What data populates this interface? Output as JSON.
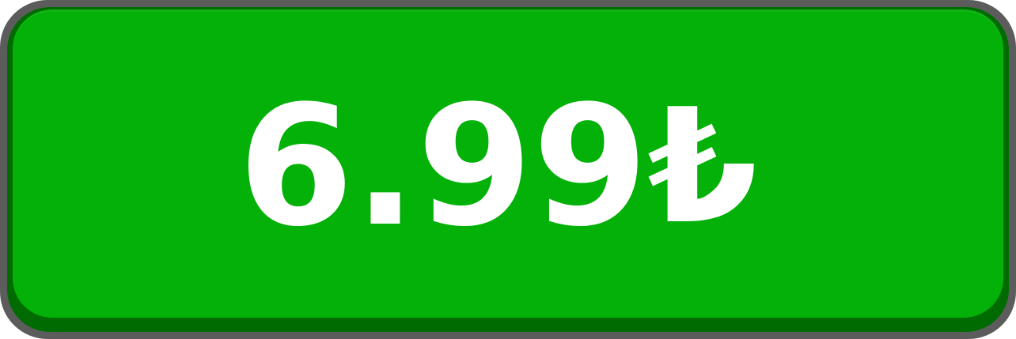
{
  "purchase_button": {
    "price_amount": "6.99",
    "currency_symbol": "₺",
    "colors": {
      "face": "#03b108",
      "depth": "#006b00",
      "border": "#5c5c5c",
      "text": "#ffffff"
    }
  }
}
